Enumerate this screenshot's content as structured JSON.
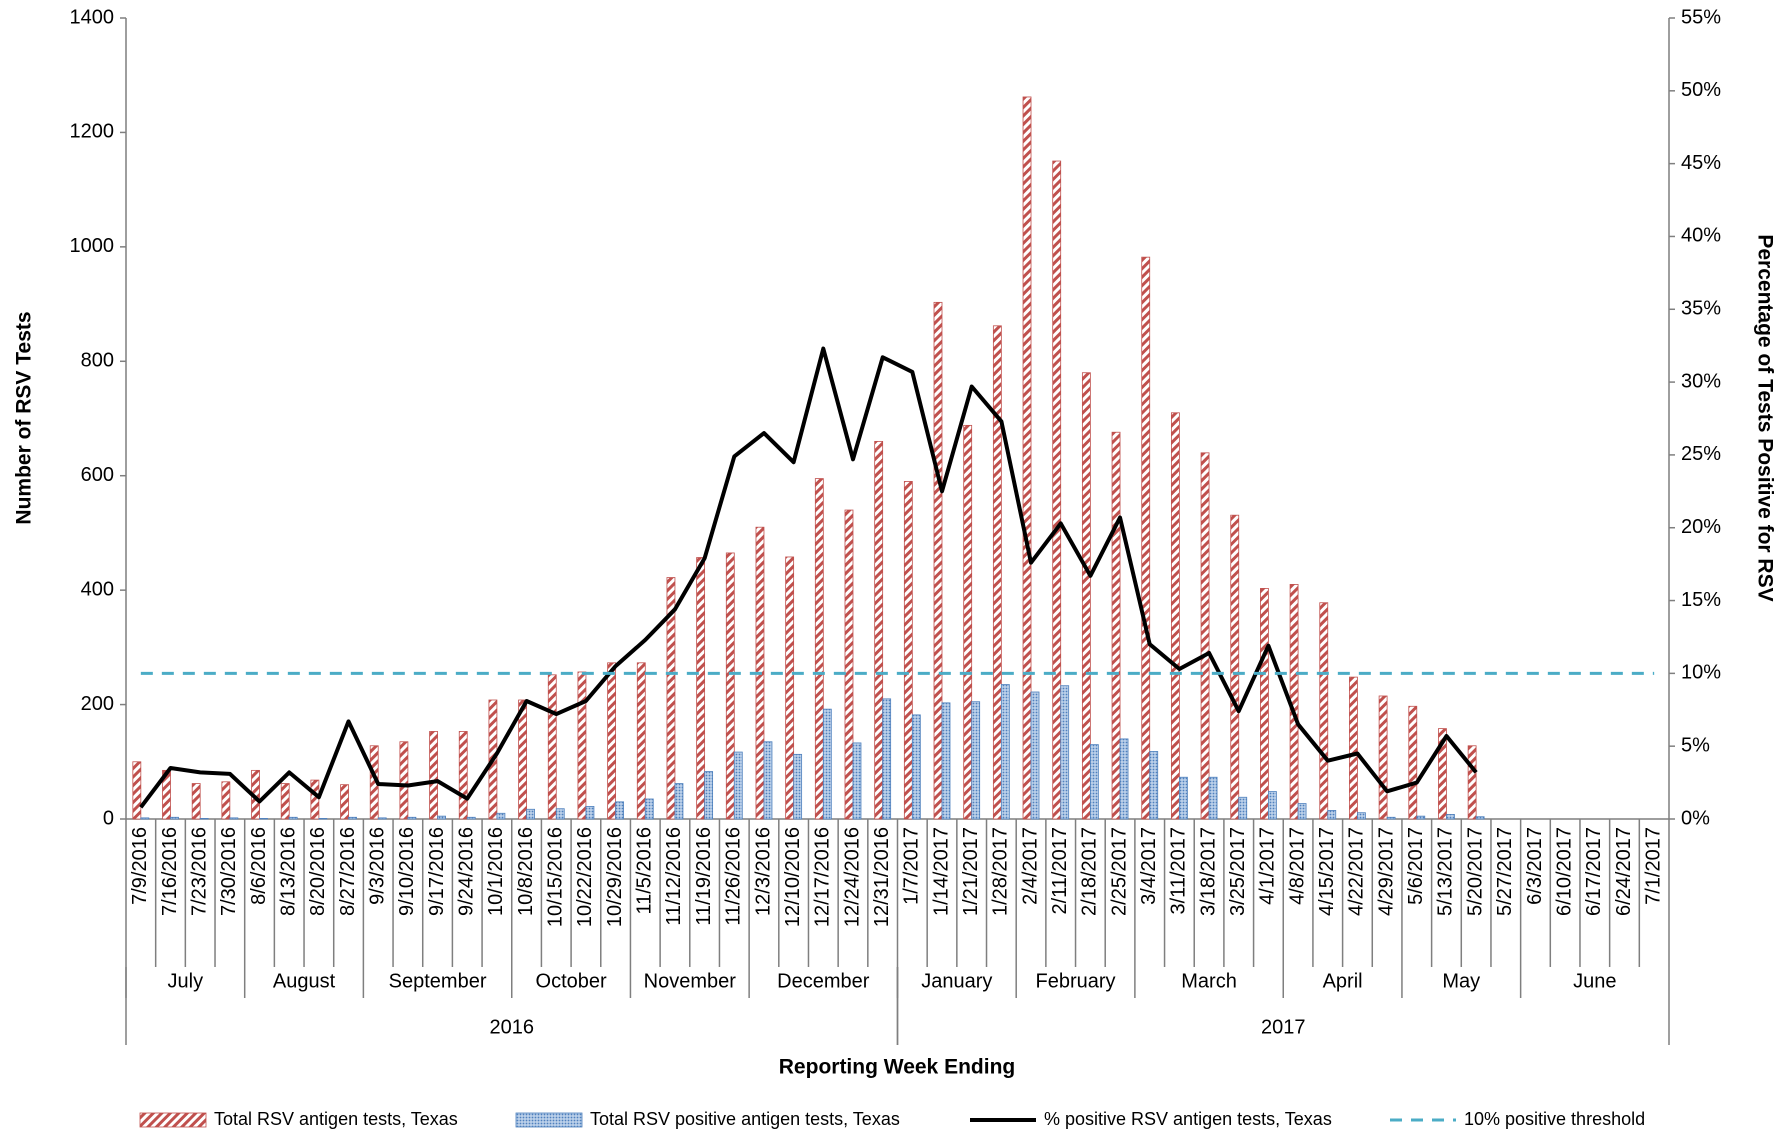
{
  "chart_data": {
    "type": "bar-line",
    "x_label": "Reporting Week Ending",
    "y_label": "Number of RSV Tests",
    "y2_label": "Percentage of Tests Positive for RSV",
    "categories": [
      "7/9/2016",
      "7/16/2016",
      "7/23/2016",
      "7/30/2016",
      "8/6/2016",
      "8/13/2016",
      "8/20/2016",
      "8/27/2016",
      "9/3/2016",
      "9/10/2016",
      "9/17/2016",
      "9/24/2016",
      "10/1/2016",
      "10/8/2016",
      "10/15/2016",
      "10/22/2016",
      "10/29/2016",
      "11/5/2016",
      "11/12/2016",
      "11/19/2016",
      "11/26/2016",
      "12/3/2016",
      "12/10/2016",
      "12/17/2016",
      "12/24/2016",
      "12/31/2016",
      "1/7/2017",
      "1/14/2017",
      "1/21/2017",
      "1/28/2017",
      "2/4/2017",
      "2/11/2017",
      "2/18/2017",
      "2/25/2017",
      "3/4/2017",
      "3/11/2017",
      "3/18/2017",
      "3/25/2017",
      "4/1/2017",
      "4/8/2017",
      "4/15/2017",
      "4/22/2017",
      "4/29/2017",
      "5/6/2017",
      "5/13/2017",
      "5/20/2017",
      "5/27/2017",
      "6/3/2017",
      "6/10/2017",
      "6/17/2017",
      "6/24/2017",
      "7/1/2017"
    ],
    "month_groups": [
      {
        "label": "July",
        "span": 4
      },
      {
        "label": "August",
        "span": 4
      },
      {
        "label": "September",
        "span": 5
      },
      {
        "label": "October",
        "span": 4
      },
      {
        "label": "November",
        "span": 4
      },
      {
        "label": "December",
        "span": 5
      },
      {
        "label": "January",
        "span": 4
      },
      {
        "label": "February",
        "span": 4
      },
      {
        "label": "March",
        "span": 5
      },
      {
        "label": "April",
        "span": 4
      },
      {
        "label": "May",
        "span": 4
      },
      {
        "label": "June",
        "span": 5
      }
    ],
    "year_groups": [
      {
        "label": "2016",
        "span": 26
      },
      {
        "label": "2017",
        "span": 26
      }
    ],
    "series": [
      {
        "name": "Total RSV antigen tests, Texas",
        "type": "bar",
        "color": "#c0504d",
        "values": [
          100,
          85,
          62,
          65,
          85,
          62,
          68,
          60,
          128,
          135,
          153,
          153,
          208,
          208,
          252,
          257,
          273,
          273,
          422,
          457,
          465,
          510,
          458,
          595,
          540,
          660,
          590,
          903,
          688,
          862,
          1262,
          1150,
          780,
          676,
          982,
          710,
          640,
          531,
          403,
          410,
          378,
          248,
          215,
          197,
          158,
          128,
          null,
          null,
          null,
          null,
          null,
          null
        ]
      },
      {
        "name": "Total RSV positive antigen tests, Texas",
        "type": "bar",
        "color": "#4f81bd",
        "values": [
          2,
          3,
          1,
          2,
          1,
          3,
          1,
          3,
          2,
          3,
          5,
          3,
          10,
          17,
          18,
          22,
          30,
          35,
          62,
          83,
          117,
          135,
          113,
          192,
          133,
          210,
          182,
          203,
          205,
          235,
          222,
          233,
          130,
          140,
          118,
          73,
          73,
          38,
          48,
          27,
          15,
          11,
          3,
          5,
          8,
          4,
          null,
          null,
          null,
          null,
          null,
          null
        ]
      },
      {
        "name": "% positive RSV antigen tests, Texas",
        "type": "line",
        "axis": "y2",
        "color": "#000000",
        "values": [
          0.8,
          3.5,
          3.2,
          3.1,
          1.2,
          3.2,
          1.5,
          6.7,
          2.4,
          2.3,
          2.6,
          1.4,
          4.5,
          8.1,
          7.2,
          8.1,
          10.5,
          12.3,
          14.4,
          17.9,
          24.9,
          26.5,
          24.5,
          32.3,
          24.7,
          31.7,
          30.7,
          22.5,
          29.7,
          27.3,
          17.6,
          20.3,
          16.7,
          20.7,
          12.0,
          10.3,
          11.4,
          7.4,
          11.9,
          6.5,
          4.0,
          4.5,
          1.9,
          2.5,
          5.7,
          3.2,
          null,
          null,
          null,
          null,
          null,
          null
        ]
      },
      {
        "name": "10% positive threshold",
        "type": "hline",
        "axis": "y2",
        "color": "#4bacc6",
        "value": 10
      }
    ],
    "ylim": [
      0,
      1400
    ],
    "yticks": [
      0,
      200,
      400,
      600,
      800,
      1000,
      1200,
      1400
    ],
    "y2lim": [
      0,
      55
    ],
    "y2ticks": [
      {
        "value": 0,
        "label": "0%"
      },
      {
        "value": 5,
        "label": "5%"
      },
      {
        "value": 10,
        "label": "10%"
      },
      {
        "value": 15,
        "label": "15%"
      },
      {
        "value": 20,
        "label": "20%"
      },
      {
        "value": 25,
        "label": "25%"
      },
      {
        "value": 30,
        "label": "30%"
      },
      {
        "value": 35,
        "label": "35%"
      },
      {
        "value": 40,
        "label": "40%"
      },
      {
        "value": 45,
        "label": "45%"
      },
      {
        "value": 50,
        "label": "50%"
      },
      {
        "value": 55,
        "label": "55%"
      }
    ],
    "grid": false
  }
}
